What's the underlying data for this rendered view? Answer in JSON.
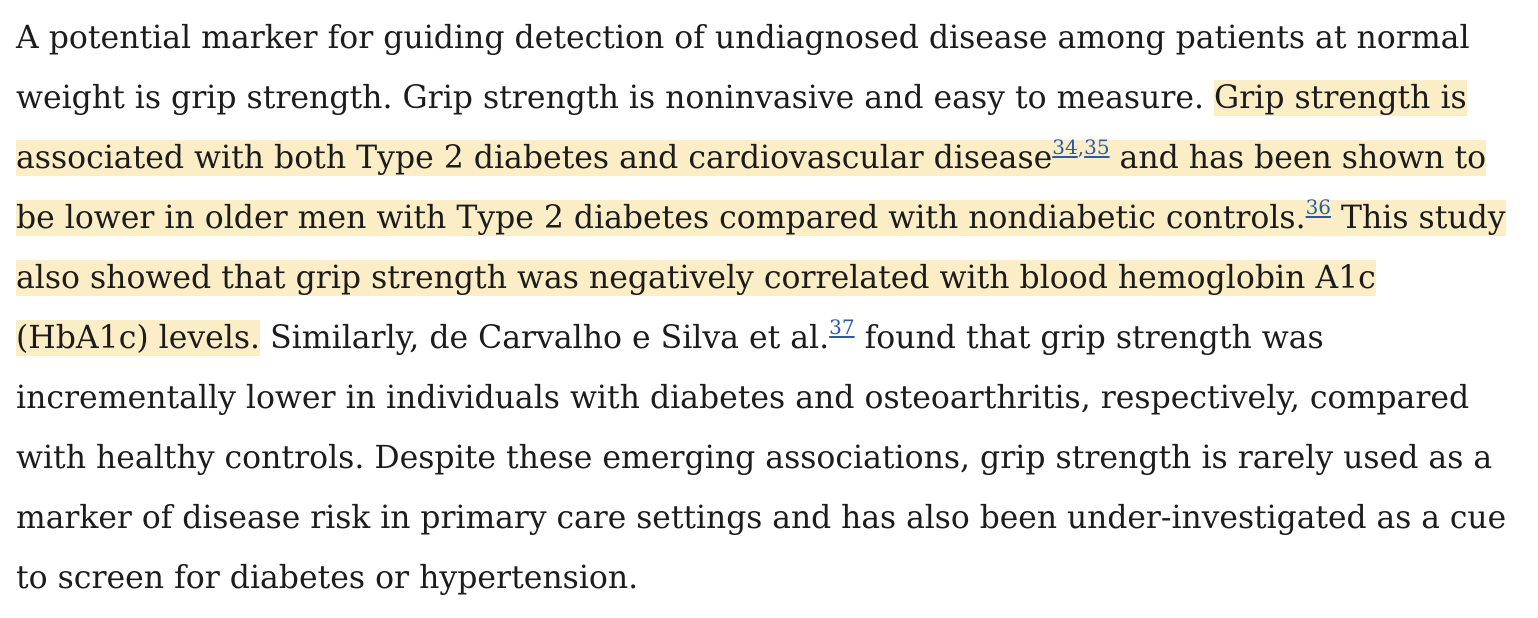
{
  "paragraph": {
    "l1": "A potential marker for guiding detection of undiagnosed disease among patients at normal",
    "l2_plain": "weight is grip strength. Grip strength is noninvasive and easy to measure. ",
    "l2_hl": "Grip strength is",
    "l3_hl_a": "associated with both Type 2 diabetes and cardiovascular disease",
    "ref_34": "34",
    "ref_sep": ",",
    "ref_35": "35",
    "l3_hl_b": " and has been shown to",
    "l4_hl_a": "be lower in older men with Type 2 diabetes compared with nondiabetic controls.",
    "ref_36": "36",
    "l4_hl_b": " This study",
    "l5_hl": "also showed that grip strength was negatively correlated with blood hemoglobin A1c",
    "l6_hl": "(HbA1c) levels.",
    "l6_plain_a": " Similarly, de Carvalho e Silva et al.",
    "ref_37": "37",
    "l6_plain_b": " found that grip strength was",
    "l7": "incrementally lower in individuals with diabetes and osteoarthritis, respectively, compared",
    "l8": "with healthy controls. Despite these emerging associations, grip strength is rarely used as a",
    "l9": "marker of disease risk in primary care settings and has also been under-investigated as a cue",
    "l10": "to screen for diabetes or hypertension."
  },
  "colors": {
    "highlight": "#fbeec6",
    "link": "#2a5aa5",
    "text": "#1c1c1c"
  }
}
